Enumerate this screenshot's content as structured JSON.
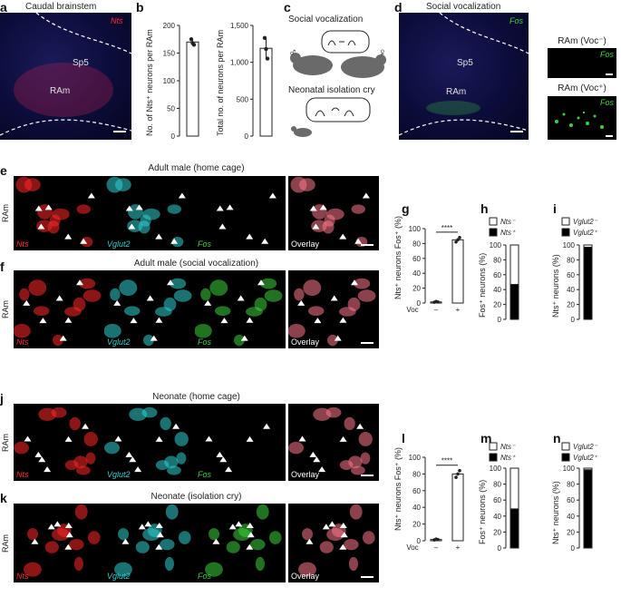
{
  "panels": {
    "a": {
      "letter": "a",
      "title": "Caudal brainstem",
      "stain": "Nts",
      "regions": [
        "Sp5",
        "RAm"
      ]
    },
    "b": {
      "letter": "b",
      "ylabel_left": "No. of Nts⁺ neurons per RAm",
      "ylabel_right": "Total no. of neurons per RAm"
    },
    "c": {
      "letter": "c",
      "label_social": "Social vocalization",
      "label_isolation": "Neonatal isolation cry",
      "male_symbol": "♂",
      "female_symbol": "♀"
    },
    "d": {
      "letter": "d",
      "title": "Social vocalization",
      "stain": "Fos",
      "regions": [
        "Sp5",
        "RAm"
      ],
      "inset_top": "RAm (Voc⁻)",
      "inset_bottom": "RAm (Voc⁺)",
      "inset_stain": "Fos"
    },
    "e": {
      "letter": "e",
      "title": "Adult male (home cage)",
      "side": "RAm"
    },
    "f": {
      "letter": "f",
      "title": "Adult male (social vocalization)",
      "side": "RAm"
    },
    "j": {
      "letter": "j",
      "title": "Neonate (home cage)",
      "side": "RAm"
    },
    "k": {
      "letter": "k",
      "title": "Neonate (isolation cry)",
      "side": "RAm"
    },
    "g": {
      "letter": "g",
      "ylabel": "Nts⁺ neurons Fos⁺ (%)",
      "xlabel": "Voc",
      "sig": "****"
    },
    "l": {
      "letter": "l",
      "ylabel": "Nts⁺ neurons Fos⁺ (%)",
      "xlabel": "Voc",
      "sig": "****"
    },
    "h": {
      "letter": "h",
      "ylabel": "Fos⁺ neurons (%)",
      "legend": [
        "Nts⁻",
        "Nts⁺"
      ]
    },
    "m": {
      "letter": "m",
      "ylabel": "Fos⁺ neurons (%)",
      "legend": [
        "Nts⁻",
        "Nts⁺"
      ]
    },
    "i": {
      "letter": "i",
      "ylabel": "Nts⁺ neurons (%)",
      "legend": [
        "Vglut2⁻",
        "Vglut2⁺"
      ]
    },
    "n": {
      "letter": "n",
      "ylabel": "Nts⁺ neurons (%)",
      "legend": [
        "Vglut2⁻",
        "Vglut2⁺"
      ]
    }
  },
  "channels": [
    {
      "label": "Nts",
      "color": "#ff2a2a"
    },
    {
      "label": "Vglut2",
      "color": "#30d0d0"
    },
    {
      "label": "Fos",
      "color": "#3cd23c"
    },
    {
      "label": "Overlay",
      "color": "#ffffff"
    }
  ],
  "colors": {
    "nts": "#ff2a2a",
    "vglut2": "#30d0d0",
    "fos": "#3cd23c",
    "brain_bg": "#0c0c3a"
  },
  "chart_data": [
    {
      "panel": "b-left",
      "type": "bar",
      "categories": [
        ""
      ],
      "values": [
        170
      ],
      "points": [
        175,
        168,
        165
      ],
      "ylim": [
        0,
        200
      ],
      "yticks": [
        0,
        50,
        100,
        150,
        200
      ],
      "ylabel": "No. of Nts⁺ neurons per RAm"
    },
    {
      "panel": "b-right",
      "type": "bar",
      "categories": [
        ""
      ],
      "values": [
        1190
      ],
      "points": [
        1330,
        1180,
        1050
      ],
      "ylim": [
        0,
        1500
      ],
      "yticks": [
        0,
        500,
        1000,
        1500
      ],
      "yticklabels": [
        "0",
        "500",
        "1,000",
        "1,500"
      ],
      "ylabel": "Total no. of neurons per RAm"
    },
    {
      "panel": "g",
      "type": "bar",
      "categories": [
        "–",
        "+"
      ],
      "values": [
        1.5,
        85
      ],
      "points": [
        [
          1,
          2,
          1.5
        ],
        [
          82,
          85,
          88
        ]
      ],
      "ylim": [
        0,
        100
      ],
      "yticks": [
        0,
        20,
        40,
        60,
        80,
        100
      ],
      "xlabel": "Voc",
      "ylabel": "Nts⁺ neurons Fos⁺ (%)",
      "annotation": "****"
    },
    {
      "panel": "h",
      "type": "bar",
      "stacked": true,
      "categories": [
        ""
      ],
      "series": [
        {
          "name": "Nts⁺",
          "values": [
            47
          ]
        },
        {
          "name": "Nts⁻",
          "values": [
            53
          ]
        }
      ],
      "ylim": [
        0,
        100
      ],
      "yticks": [
        0,
        20,
        40,
        60,
        80,
        100
      ],
      "ylabel": "Fos⁺ neurons (%)"
    },
    {
      "panel": "i",
      "type": "bar",
      "stacked": true,
      "categories": [
        ""
      ],
      "series": [
        {
          "name": "Vglut2⁺",
          "values": [
            97
          ]
        },
        {
          "name": "Vglut2⁻",
          "values": [
            3
          ]
        }
      ],
      "ylim": [
        0,
        100
      ],
      "yticks": [
        0,
        20,
        40,
        60,
        80,
        100
      ],
      "ylabel": "Nts⁺ neurons (%)"
    },
    {
      "panel": "l",
      "type": "bar",
      "categories": [
        "–",
        "+"
      ],
      "values": [
        1.5,
        80
      ],
      "points": [
        [
          1,
          2,
          1.5
        ],
        [
          76,
          80,
          84
        ]
      ],
      "ylim": [
        0,
        100
      ],
      "yticks": [
        0,
        20,
        40,
        60,
        80,
        100
      ],
      "xlabel": "Voc",
      "ylabel": "Nts⁺ neurons Fos⁺ (%)",
      "annotation": "****"
    },
    {
      "panel": "m",
      "type": "bar",
      "stacked": true,
      "categories": [
        ""
      ],
      "series": [
        {
          "name": "Nts⁺",
          "values": [
            49
          ]
        },
        {
          "name": "Nts⁻",
          "values": [
            51
          ]
        }
      ],
      "ylim": [
        0,
        100
      ],
      "yticks": [
        0,
        20,
        40,
        60,
        80,
        100
      ],
      "ylabel": "Fos⁺ neurons (%)"
    },
    {
      "panel": "n",
      "type": "bar",
      "stacked": true,
      "categories": [
        ""
      ],
      "series": [
        {
          "name": "Vglut2⁺",
          "values": [
            98
          ]
        },
        {
          "name": "Vglut2⁻",
          "values": [
            2
          ]
        }
      ],
      "ylim": [
        0,
        100
      ],
      "yticks": [
        0,
        20,
        40,
        60,
        80,
        100
      ],
      "ylabel": "Nts⁺ neurons (%)"
    }
  ]
}
